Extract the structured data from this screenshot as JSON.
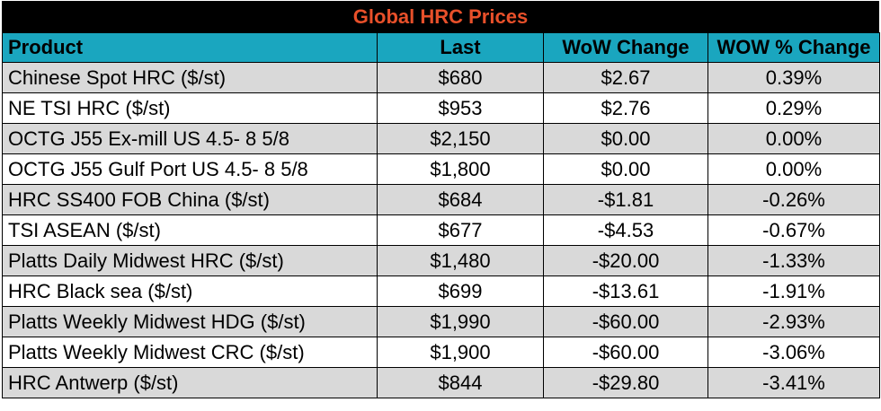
{
  "title": "Global HRC Prices",
  "colors": {
    "title_bg": "#000000",
    "title_text": "#e8502a",
    "header_bg": "#1aa6bf",
    "row_shade": "#d9d9d9"
  },
  "headers": {
    "product": "Product",
    "last": "Last",
    "wow_change": "WoW Change",
    "wow_pct_change": "WOW % Change"
  },
  "rows": [
    {
      "product": "Chinese Spot HRC ($/st)",
      "last": "$680",
      "wow": "$2.67",
      "pct": "0.39%"
    },
    {
      "product": "NE TSI HRC ($/st)",
      "last": "$953",
      "wow": "$2.76",
      "pct": "0.29%"
    },
    {
      "product": "OCTG J55 Ex-mill US 4.5- 8 5/8",
      "last": "$2,150",
      "wow": "$0.00",
      "pct": "0.00%"
    },
    {
      "product": "OCTG J55 Gulf Port US 4.5- 8 5/8",
      "last": "$1,800",
      "wow": "$0.00",
      "pct": "0.00%"
    },
    {
      "product": "HRC SS400 FOB China ($/st)",
      "last": "$684",
      "wow": "-$1.81",
      "pct": "-0.26%"
    },
    {
      "product": "TSI ASEAN ($/st)",
      "last": "$677",
      "wow": "-$4.53",
      "pct": "-0.67%"
    },
    {
      "product": "Platts Daily Midwest HRC ($/st)",
      "last": "$1,480",
      "wow": "-$20.00",
      "pct": "-1.33%"
    },
    {
      "product": "HRC Black sea ($/st)",
      "last": "$699",
      "wow": "-$13.61",
      "pct": "-1.91%"
    },
    {
      "product": "Platts Weekly Midwest HDG ($/st)",
      "last": "$1,990",
      "wow": "-$60.00",
      "pct": "-2.93%"
    },
    {
      "product": "Platts Weekly Midwest CRC ($/st)",
      "last": "$1,900",
      "wow": "-$60.00",
      "pct": "-3.06%"
    },
    {
      "product": "HRC Antwerp ($/st)",
      "last": "$844",
      "wow": "-$29.80",
      "pct": "-3.41%"
    }
  ]
}
